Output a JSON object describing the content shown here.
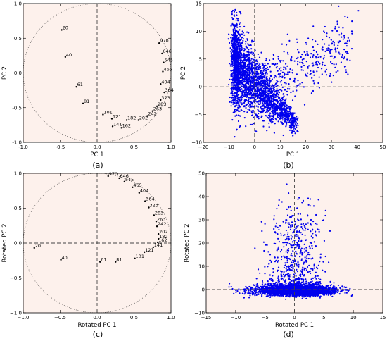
{
  "chart_data": [
    {
      "panel": "(a)",
      "type": "scatter",
      "xlabel": "PC 1",
      "ylabel": "PC 2",
      "xlim": [
        -1.0,
        1.0
      ],
      "ylim": [
        -1.0,
        1.0
      ],
      "xticks": [
        "-1.0",
        "-0.5",
        "0.0",
        "0.5",
        "1.0"
      ],
      "yticks": [
        "-1.0",
        "-0.5",
        "0.0",
        "0.5",
        "1.0"
      ],
      "unit_circle": true,
      "reference_lines": {
        "x": 0,
        "y": 0
      },
      "points": [
        {
          "label": "20",
          "x": -0.48,
          "y": 0.62
        },
        {
          "label": "40",
          "x": -0.43,
          "y": 0.23
        },
        {
          "label": "61",
          "x": -0.28,
          "y": -0.2
        },
        {
          "label": "81",
          "x": -0.19,
          "y": -0.44
        },
        {
          "label": "101",
          "x": 0.08,
          "y": -0.6
        },
        {
          "label": "121",
          "x": 0.2,
          "y": -0.66
        },
        {
          "label": "141",
          "x": 0.21,
          "y": -0.77
        },
        {
          "label": "162",
          "x": 0.33,
          "y": -0.79
        },
        {
          "label": "182",
          "x": 0.4,
          "y": -0.68
        },
        {
          "label": "202",
          "x": 0.56,
          "y": -0.68
        },
        {
          "label": "242",
          "x": 0.68,
          "y": -0.62
        },
        {
          "label": "263",
          "x": 0.75,
          "y": -0.55
        },
        {
          "label": "283",
          "x": 0.81,
          "y": -0.48
        },
        {
          "label": "323",
          "x": 0.86,
          "y": -0.39
        },
        {
          "label": "364",
          "x": 0.91,
          "y": -0.28
        },
        {
          "label": "404",
          "x": 0.86,
          "y": -0.16
        },
        {
          "label": "465",
          "x": 0.89,
          "y": 0.02
        },
        {
          "label": "545",
          "x": 0.9,
          "y": 0.15
        },
        {
          "label": "646",
          "x": 0.88,
          "y": 0.28
        },
        {
          "label": "970",
          "x": 0.84,
          "y": 0.43
        }
      ],
      "caption": "(a)"
    },
    {
      "panel": "(b)",
      "type": "scatter",
      "xlabel": "PC 1",
      "ylabel": "PC 2",
      "xlim": [
        -20,
        50
      ],
      "ylim": [
        -10,
        15
      ],
      "xticks": [
        "−20",
        "−10",
        "0",
        "10",
        "20",
        "30",
        "40",
        "50"
      ],
      "yticks": [
        "−10",
        "−5",
        "0",
        "5",
        "10",
        "15"
      ],
      "reference_lines": {
        "x": 0,
        "y": 0
      },
      "series_color": "#0000ee",
      "caption": "(b)"
    },
    {
      "panel": "(c)",
      "type": "scatter",
      "xlabel": "Rotated PC 1",
      "ylabel": "Rotated PC 2",
      "xlim": [
        -1.0,
        1.0
      ],
      "ylim": [
        -1.0,
        1.0
      ],
      "xticks": [
        "−1.0",
        "−0.5",
        "0.0",
        "0.5",
        "1.0"
      ],
      "yticks": [
        "−1.0",
        "−0.5",
        "0.0",
        "0.5",
        "1.0"
      ],
      "unit_circle": true,
      "reference_lines": {
        "x": 0,
        "y": 0
      },
      "points": [
        {
          "label": "970",
          "x": 0.15,
          "y": 0.96
        },
        {
          "label": "646",
          "x": 0.3,
          "y": 0.93
        },
        {
          "label": "545",
          "x": 0.37,
          "y": 0.88
        },
        {
          "label": "465",
          "x": 0.48,
          "y": 0.8
        },
        {
          "label": "404",
          "x": 0.57,
          "y": 0.72
        },
        {
          "label": "364",
          "x": 0.65,
          "y": 0.6
        },
        {
          "label": "323",
          "x": 0.7,
          "y": 0.51
        },
        {
          "label": "283",
          "x": 0.77,
          "y": 0.4
        },
        {
          "label": "263",
          "x": 0.8,
          "y": 0.31
        },
        {
          "label": "242",
          "x": 0.81,
          "y": 0.24
        },
        {
          "label": "202",
          "x": 0.83,
          "y": 0.13
        },
        {
          "label": "182",
          "x": 0.83,
          "y": 0.06
        },
        {
          "label": "162",
          "x": 0.82,
          "y": 0.01
        },
        {
          "label": "141",
          "x": 0.76,
          "y": -0.06
        },
        {
          "label": "121",
          "x": 0.64,
          "y": -0.13
        },
        {
          "label": "101",
          "x": 0.51,
          "y": -0.22
        },
        {
          "label": "81",
          "x": 0.25,
          "y": -0.27
        },
        {
          "label": "61",
          "x": 0.04,
          "y": -0.27
        },
        {
          "label": "40",
          "x": -0.49,
          "y": -0.24
        },
        {
          "label": "20",
          "x": -0.85,
          "y": -0.07
        }
      ],
      "caption": "(c)"
    },
    {
      "panel": "(d)",
      "type": "scatter",
      "xlabel": "Rotated PC 1",
      "ylabel": "Rotated PC 2",
      "xlim": [
        -15,
        15
      ],
      "ylim": [
        -10,
        50
      ],
      "xticks": [
        "−15",
        "−10",
        "−5",
        "0",
        "5",
        "10",
        "15"
      ],
      "yticks": [
        "−10",
        "0",
        "10",
        "20",
        "30",
        "40",
        "50"
      ],
      "reference_lines": {
        "x": 0,
        "y": 0
      },
      "series_color": "#0000ee",
      "caption": "(d)"
    }
  ],
  "style": {
    "plot_background": "#fdf1ec",
    "point_color": "#0000ee",
    "axis_color": "#000000",
    "reference_line_color": "#444444"
  }
}
